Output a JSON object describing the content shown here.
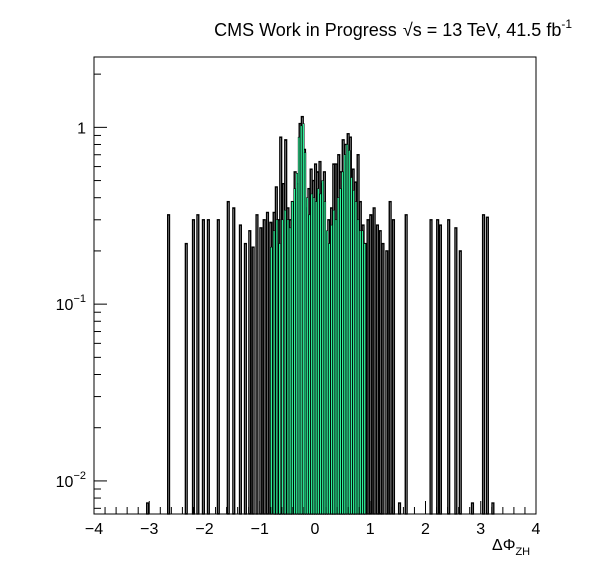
{
  "chart_data": {
    "type": "bar",
    "title_parts": {
      "experiment": "CMS Work in Progress",
      "sqrt": "√",
      "energy_var": "s",
      "energy_rest": " = 13 TeV, 41.5 fb",
      "lumi_exp": "-1"
    },
    "xlabel": {
      "main": "ΔΦ",
      "sub": "ZH"
    },
    "ylabel": "",
    "xlim": [
      -4,
      4
    ],
    "ylim": [
      0.0065,
      2.5
    ],
    "yscale": "log",
    "grid": false,
    "xticks": [
      -4,
      -3,
      -2,
      -1,
      0,
      1,
      2,
      3,
      4
    ],
    "xtick_labels": [
      "−4",
      "−3",
      "−2",
      "−1",
      "0",
      "1",
      "2",
      "3",
      "4"
    ],
    "yticks": [
      {
        "value": 0.01,
        "base": "10",
        "exp": "−2"
      },
      {
        "value": 0.1,
        "base": "10",
        "exp": "−1"
      },
      {
        "value": 1,
        "base": "1",
        "exp": ""
      }
    ],
    "colors": {
      "outline": "#000000",
      "fill": "#2ef29a"
    },
    "series": [
      {
        "style": "outline",
        "bars": [
          [
            -3.03,
            0.0075
          ],
          [
            -2.65,
            0.32
          ],
          [
            -2.33,
            0.22
          ],
          [
            -2.2,
            0.3
          ],
          [
            -2.12,
            0.32
          ],
          [
            -2.02,
            0.3
          ],
          [
            -1.93,
            0.3
          ],
          [
            -1.75,
            0.3
          ],
          [
            -1.57,
            0.38
          ],
          [
            -1.47,
            0.35
          ],
          [
            -1.35,
            0.28
          ],
          [
            -1.26,
            0.22
          ],
          [
            -1.18,
            0.26
          ],
          [
            -1.12,
            0.21
          ],
          [
            -1.05,
            0.32
          ],
          [
            -0.98,
            0.27
          ],
          [
            -0.92,
            0.3
          ],
          [
            -0.86,
            0.33
          ],
          [
            -0.8,
            0.29
          ],
          [
            -0.74,
            0.33
          ],
          [
            -0.7,
            0.46
          ],
          [
            -0.65,
            0.3
          ],
          [
            -0.62,
            0.88
          ],
          [
            -0.57,
            0.48
          ],
          [
            -0.53,
            0.85
          ],
          [
            -0.49,
            0.35
          ],
          [
            -0.45,
            0.3
          ],
          [
            -0.41,
            0.38
          ],
          [
            -0.36,
            0.56
          ],
          [
            -0.31,
            0.48
          ],
          [
            -0.27,
            1.05
          ],
          [
            -0.23,
            1.15
          ],
          [
            -0.19,
            0.75
          ],
          [
            -0.15,
            0.35
          ],
          [
            -0.11,
            0.45
          ],
          [
            -0.07,
            0.58
          ],
          [
            -0.03,
            0.5
          ],
          [
            0.01,
            0.62
          ],
          [
            0.05,
            0.56
          ],
          [
            0.09,
            0.64
          ],
          [
            0.13,
            0.48
          ],
          [
            0.17,
            0.56
          ],
          [
            0.21,
            0.2
          ],
          [
            0.25,
            0.3
          ],
          [
            0.3,
            0.35
          ],
          [
            0.34,
            0.62
          ],
          [
            0.38,
            0.62
          ],
          [
            0.43,
            0.7
          ],
          [
            0.47,
            0.56
          ],
          [
            0.51,
            0.85
          ],
          [
            0.55,
            0.8
          ],
          [
            0.6,
            0.92
          ],
          [
            0.64,
            0.88
          ],
          [
            0.69,
            0.58
          ],
          [
            0.73,
            0.49
          ],
          [
            0.78,
            0.7
          ],
          [
            0.82,
            0.38
          ],
          [
            0.87,
            0.28
          ],
          [
            0.91,
            0.22
          ],
          [
            0.96,
            0.3
          ],
          [
            1.01,
            0.32
          ],
          [
            1.07,
            0.35
          ],
          [
            1.13,
            0.28
          ],
          [
            1.18,
            0.26
          ],
          [
            1.23,
            0.22
          ],
          [
            1.3,
            0.2
          ],
          [
            1.36,
            0.38
          ],
          [
            1.42,
            0.3
          ],
          [
            1.53,
            0.0075
          ],
          [
            1.65,
            0.32
          ],
          [
            2.1,
            0.3
          ],
          [
            2.22,
            0.3
          ],
          [
            2.27,
            0.28
          ],
          [
            2.42,
            0.3
          ],
          [
            2.55,
            0.27
          ],
          [
            2.63,
            0.2
          ],
          [
            2.85,
            0.0075
          ],
          [
            3.05,
            0.32
          ],
          [
            3.12,
            0.31
          ],
          [
            3.22,
            0.0075
          ]
        ]
      },
      {
        "style": "filled",
        "bars": [
          [
            -0.79,
            0.21
          ],
          [
            -0.74,
            0.26
          ],
          [
            -0.69,
            0.3
          ],
          [
            -0.64,
            0.22
          ],
          [
            -0.59,
            0.3
          ],
          [
            -0.54,
            0.34
          ],
          [
            -0.49,
            0.3
          ],
          [
            -0.45,
            0.27
          ],
          [
            -0.41,
            0.38
          ],
          [
            -0.37,
            0.45
          ],
          [
            -0.33,
            0.55
          ],
          [
            -0.29,
            0.88
          ],
          [
            -0.25,
            1.02
          ],
          [
            -0.21,
            1.05
          ],
          [
            -0.18,
            0.72
          ],
          [
            -0.14,
            0.4
          ],
          [
            -0.1,
            0.32
          ],
          [
            -0.06,
            0.42
          ],
          [
            -0.02,
            0.4
          ],
          [
            0.02,
            0.38
          ],
          [
            0.06,
            0.45
          ],
          [
            0.1,
            0.42
          ],
          [
            0.14,
            0.5
          ],
          [
            0.18,
            0.38
          ],
          [
            0.22,
            0.26
          ],
          [
            0.26,
            0.22
          ],
          [
            0.3,
            0.28
          ],
          [
            0.34,
            0.34
          ],
          [
            0.38,
            0.3
          ],
          [
            0.42,
            0.4
          ],
          [
            0.46,
            0.45
          ],
          [
            0.5,
            0.56
          ],
          [
            0.54,
            0.7
          ],
          [
            0.58,
            0.8
          ],
          [
            0.62,
            0.74
          ],
          [
            0.66,
            0.52
          ],
          [
            0.7,
            0.44
          ],
          [
            0.74,
            0.38
          ],
          [
            0.78,
            0.3
          ],
          [
            0.82,
            0.26
          ],
          [
            0.86,
            0.26
          ],
          [
            0.9,
            0.22
          ]
        ]
      }
    ]
  }
}
